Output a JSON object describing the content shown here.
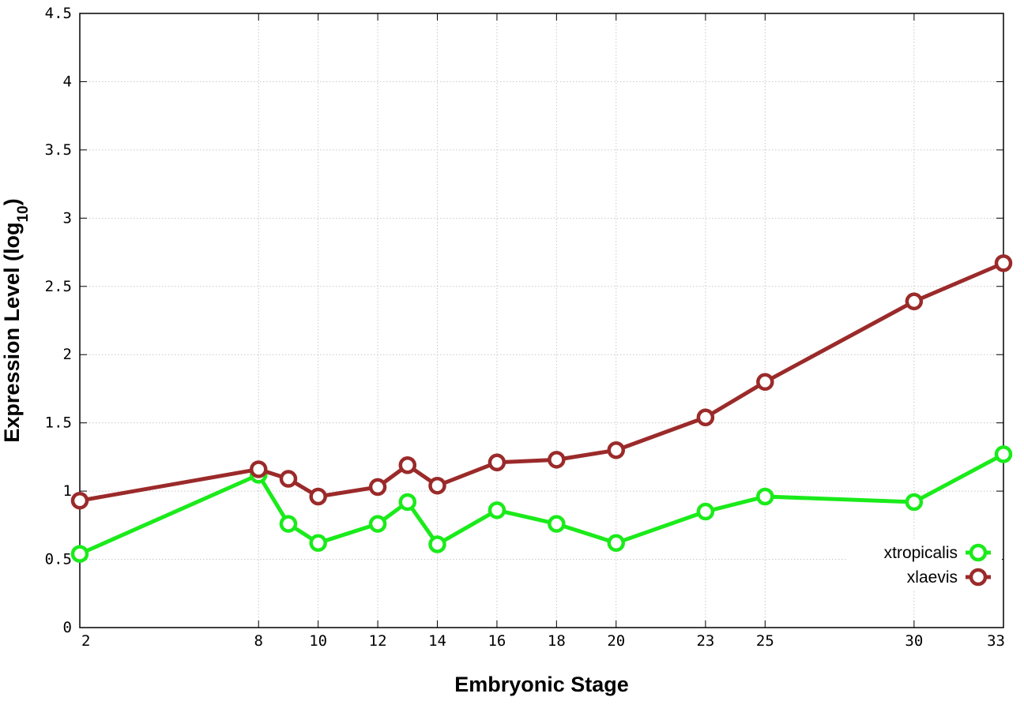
{
  "chart_data": {
    "type": "line",
    "xlabel": "Embryonic Stage",
    "ylabel": {
      "text": "Expression Level (log",
      "subscript": "10",
      "suffix": ")"
    },
    "x": [
      2,
      8,
      9,
      10,
      12,
      13,
      14,
      16,
      18,
      20,
      23,
      25,
      30,
      33
    ],
    "x_tick_labels": [
      "2",
      "8",
      "10",
      "12",
      "14",
      "16",
      "18",
      "20",
      "23",
      "25",
      "30",
      "33"
    ],
    "xlim": [
      2,
      33
    ],
    "ylim": [
      0,
      4.5
    ],
    "y_tick_labels": [
      "0",
      "0.5",
      "1",
      "1.5",
      "2",
      "2.5",
      "3",
      "3.5",
      "4",
      "4.5"
    ],
    "grid": true,
    "legend_position": "bottom-right",
    "series": [
      {
        "name": "xtropicalis",
        "color": "#1aeb1a",
        "values": [
          0.54,
          1.12,
          0.76,
          0.62,
          0.76,
          0.92,
          0.61,
          0.86,
          0.76,
          0.62,
          0.85,
          0.96,
          0.92,
          1.27
        ]
      },
      {
        "name": "xlaevis",
        "color": "#9b2a2a",
        "values": [
          0.93,
          1.16,
          1.09,
          0.96,
          1.03,
          1.19,
          1.04,
          1.21,
          1.23,
          1.3,
          1.54,
          1.8,
          2.39,
          2.67
        ]
      }
    ]
  }
}
